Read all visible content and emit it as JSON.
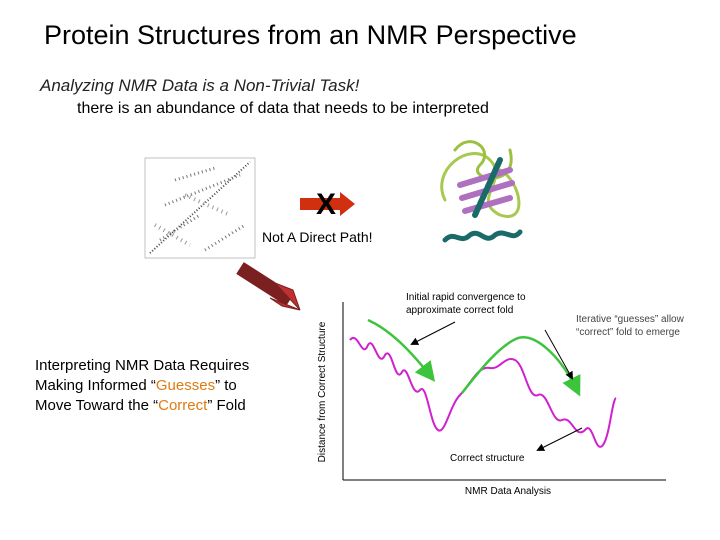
{
  "title": "Protein Structures from an NMR Perspective",
  "subtitle": "Analyzing NMR Data is a Non-Trivial Task!",
  "bullet": "there is an abundance of data that needs to be interpreted",
  "cross_mark": "X",
  "not_direct": "Not A Direct Path!",
  "left_text": [
    [
      "Interpreting NMR Data Requires"
    ],
    [
      "Making Informed “",
      "Guesses",
      "” to"
    ],
    [
      "Move Toward the “",
      "Correct",
      "” Fold"
    ]
  ],
  "diagram": {
    "annotation_1": [
      "Initial rapid convergence to",
      "approximate correct fold"
    ],
    "annotation_2": [
      "Iterative “guesses” allow",
      "“correct” fold to emerge"
    ],
    "correct_structure": "Correct structure",
    "x_label": "NMR Data Analysis",
    "y_label": "Distance from Correct Structure"
  }
}
